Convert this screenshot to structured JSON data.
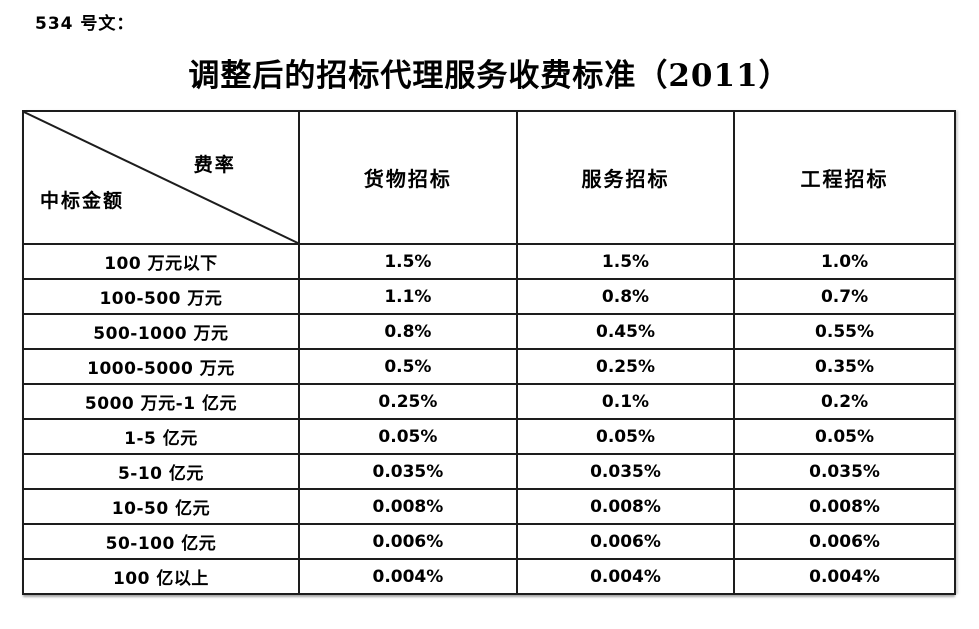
{
  "page": {
    "doc_ref": "534 号文：",
    "title": "调整后的招标代理服务收费标准（2011）"
  },
  "table": {
    "corner": {
      "top_right": "费率",
      "bottom_left": "中标金额"
    },
    "columns": [
      "货物招标",
      "服务招标",
      "工程招标"
    ],
    "rows": [
      {
        "label": "100 万元以下",
        "values": [
          "1.5%",
          "1.5%",
          "1.0%"
        ]
      },
      {
        "label": "100-500 万元",
        "values": [
          "1.1%",
          "0.8%",
          "0.7%"
        ]
      },
      {
        "label": "500-1000 万元",
        "values": [
          "0.8%",
          "0.45%",
          "0.55%"
        ]
      },
      {
        "label": "1000-5000 万元",
        "values": [
          "0.5%",
          "0.25%",
          "0.35%"
        ]
      },
      {
        "label": "5000 万元-1 亿元",
        "values": [
          "0.25%",
          "0.1%",
          "0.2%"
        ]
      },
      {
        "label": "1-5 亿元",
        "values": [
          "0.05%",
          "0.05%",
          "0.05%"
        ]
      },
      {
        "label": "5-10 亿元",
        "values": [
          "0.035%",
          "0.035%",
          "0.035%"
        ]
      },
      {
        "label": "10-50 亿元",
        "values": [
          "0.008%",
          "0.008%",
          "0.008%"
        ]
      },
      {
        "label": "50-100 亿元",
        "values": [
          "0.006%",
          "0.006%",
          "0.006%"
        ]
      },
      {
        "label": "100 亿以上",
        "values": [
          "0.004%",
          "0.004%",
          "0.004%"
        ]
      }
    ]
  },
  "colors": {
    "text": "#000000",
    "border": "#1d1d1d",
    "background": "#ffffff"
  }
}
